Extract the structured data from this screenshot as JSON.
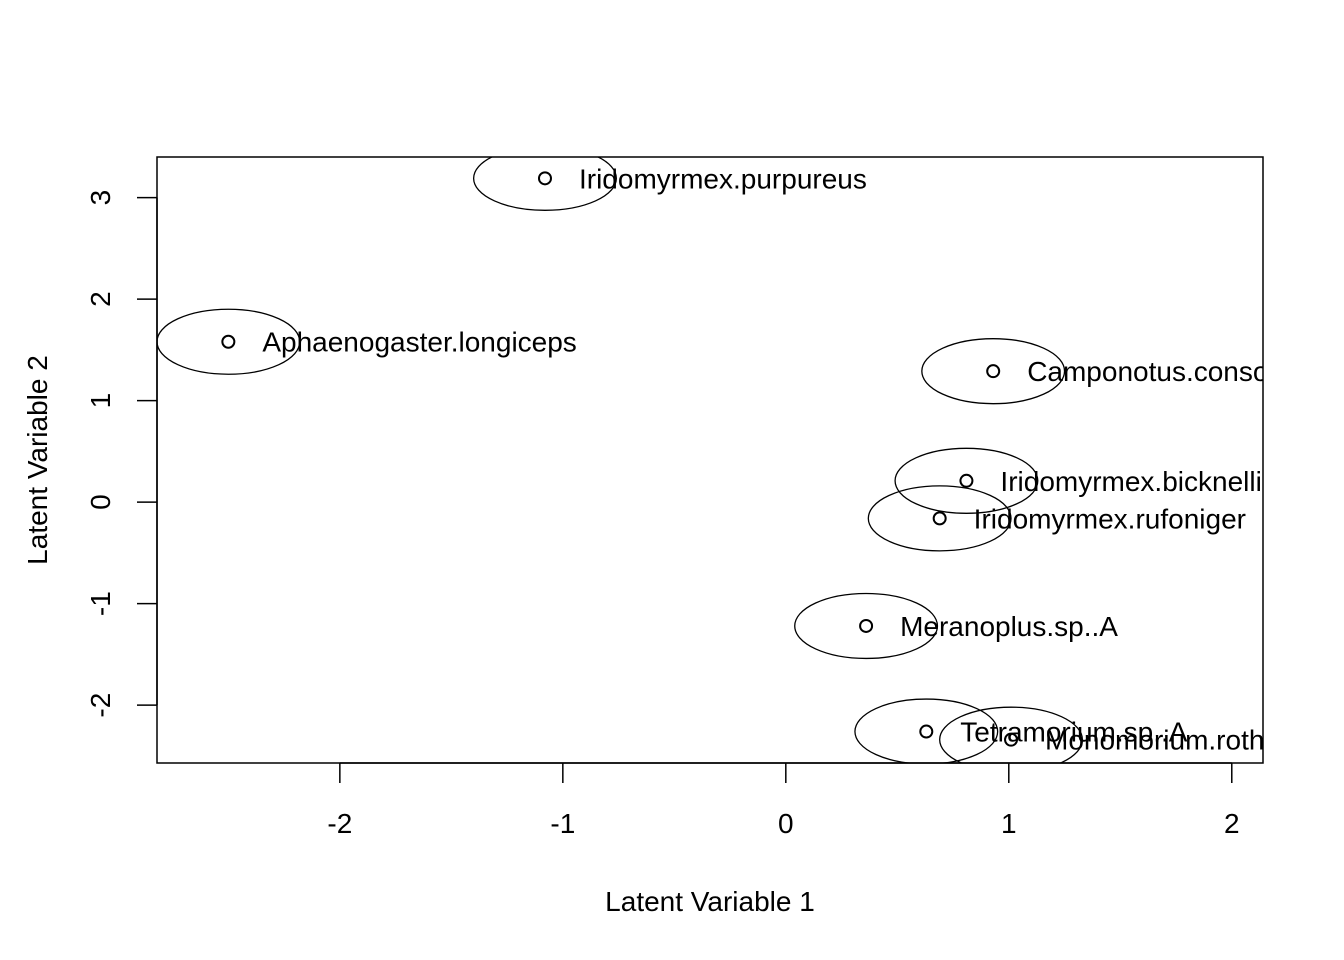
{
  "chart_data": {
    "type": "scatter",
    "title": "",
    "xlabel": "Latent Variable 1",
    "ylabel": "Latent Variable 2",
    "xlim": [
      -2.82,
      2.14
    ],
    "ylim": [
      -2.57,
      3.4
    ],
    "x_ticks": [
      -2,
      -1,
      0,
      1,
      2
    ],
    "y_ticks": [
      -2,
      -1,
      0,
      1,
      2,
      3
    ],
    "x_tick_labels": [
      "-2",
      "-1",
      "0",
      "1",
      "2"
    ],
    "y_tick_labels": [
      "-2",
      "-1",
      "0",
      "1",
      "2",
      "3"
    ],
    "grid": false,
    "points": [
      {
        "label": "Iridomyrmex.purpureus",
        "x": -1.08,
        "y": 3.19,
        "rx": 0.64,
        "ry": 0.63
      },
      {
        "label": "Aphaenogaster.longiceps",
        "x": -2.5,
        "y": 1.58,
        "rx": 0.64,
        "ry": 0.64
      },
      {
        "label": "Camponotus.consobrinus",
        "x": 0.93,
        "y": 1.29,
        "rx": 0.64,
        "ry": 0.64
      },
      {
        "label": "Iridomyrmex.bicknelli",
        "x": 0.81,
        "y": 0.21,
        "rx": 0.64,
        "ry": 0.64
      },
      {
        "label": "Iridomyrmex.rufoniger",
        "x": 0.69,
        "y": -0.16,
        "rx": 0.64,
        "ry": 0.64
      },
      {
        "label": "Meranoplus.sp..A",
        "x": 0.36,
        "y": -1.22,
        "rx": 0.64,
        "ry": 0.64
      },
      {
        "label": "Tetramorium.sp..A",
        "x": 0.63,
        "y": -2.26,
        "rx": 0.64,
        "ry": 0.64
      },
      {
        "label": "Monomorium.rothsteini",
        "x": 1.01,
        "y": -2.34,
        "rx": 0.64,
        "ry": 0.64
      }
    ]
  }
}
